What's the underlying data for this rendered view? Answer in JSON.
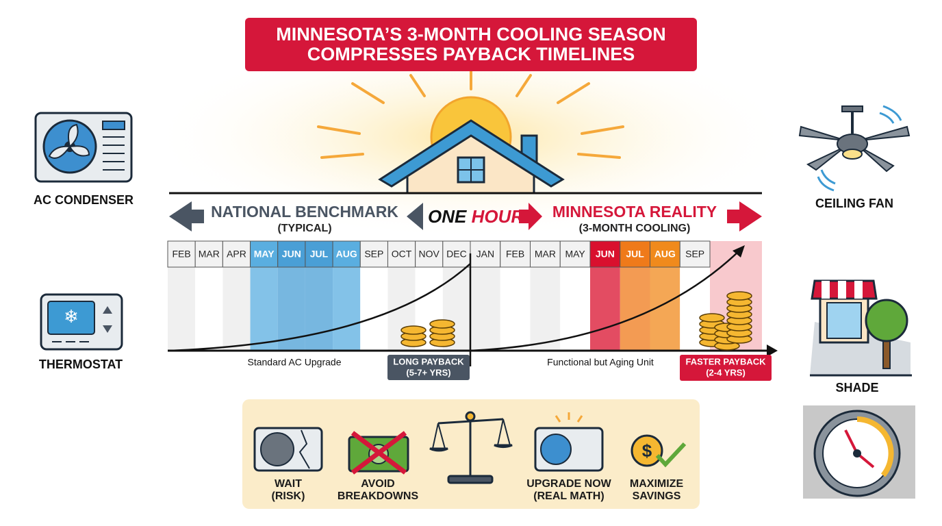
{
  "title": {
    "line1": "MINNESOTA’S 3-MONTH COOLING SEASON",
    "line2": "COMPRESSES PAYBACK TIMELINES"
  },
  "side_icons": {
    "left": [
      "AC CONDENSER",
      "THERMOSTAT"
    ],
    "right": [
      "CEILING FAN",
      "SHADE"
    ]
  },
  "timeline": {
    "national": {
      "heading": "NATIONAL BENCHMARK",
      "sub": "(TYPICAL)"
    },
    "divider": {
      "one": "ONE",
      "hour": "HOUR"
    },
    "minnesota": {
      "heading": "MINNESOTA REALITY",
      "sub": "(3-MONTH COOLING)"
    },
    "left_months": [
      {
        "label": "FEB"
      },
      {
        "label": "MAR"
      },
      {
        "label": "APR"
      },
      {
        "label": "MAY",
        "color": "#5aaee0"
      },
      {
        "label": "JUN",
        "color": "#4a9fd6"
      },
      {
        "label": "JUL",
        "color": "#4a9fd6"
      },
      {
        "label": "AUG",
        "color": "#5aaee0"
      },
      {
        "label": "SEP"
      },
      {
        "label": "OCT"
      },
      {
        "label": "NOV"
      },
      {
        "label": "DEC"
      }
    ],
    "right_months": [
      {
        "label": "JAN"
      },
      {
        "label": "FEB"
      },
      {
        "label": "MAR"
      },
      {
        "label": "MAY"
      },
      {
        "label": "JUN",
        "color": "#d9102e"
      },
      {
        "label": "JUL",
        "color": "#ef7a1a"
      },
      {
        "label": "AUG",
        "color": "#f08a1c"
      },
      {
        "label": "SEP"
      }
    ],
    "left_caption": "Standard AC Upgrade",
    "left_badge": {
      "line1": "LONG PAYBACK",
      "line2": "(5-7+ YRS)"
    },
    "right_caption": "Functional but Aging Unit",
    "right_badge": {
      "line1": "FASTER PAYBACK",
      "line2": "(2-4 YRS)"
    }
  },
  "options": [
    {
      "line1": "WAIT",
      "line2": "(RISK)"
    },
    {
      "line1": "AVOID",
      "line2": "BREAKDOWNS"
    },
    {
      "line1": "UPGRADE NOW",
      "line2": "(REAL MATH)"
    },
    {
      "line1": "MAXIMIZE",
      "line2": "SAVINGS"
    }
  ]
}
